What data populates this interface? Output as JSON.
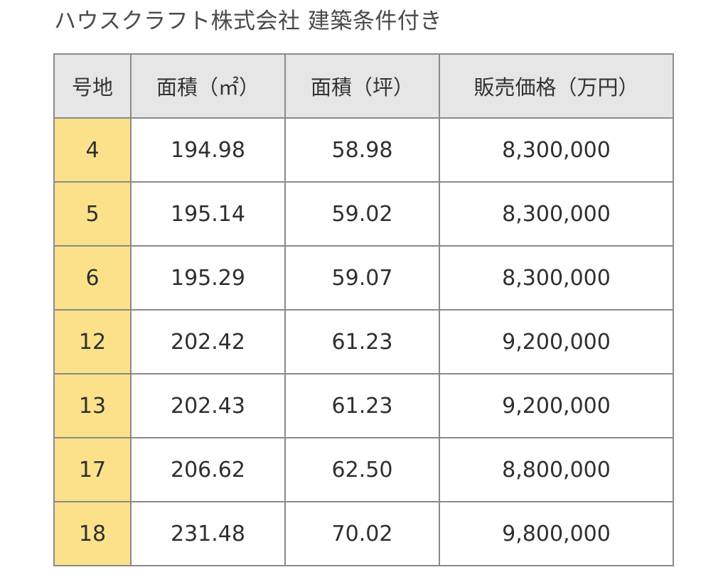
{
  "title": "ハウスクラフト株式会社 建築条件付き",
  "colors": {
    "header_bg": "#e6e6e6",
    "lot_bg": "#fbe28a",
    "border": "#8a8a8a",
    "text": "#2f2f2f"
  },
  "table": {
    "headers": [
      "号地",
      "面積（㎡）",
      "面積（坪）",
      "販売価格（万円）"
    ],
    "rows": [
      [
        "4",
        "194.98",
        "58.98",
        "8,300,000"
      ],
      [
        "5",
        "195.14",
        "59.02",
        "8,300,000"
      ],
      [
        "6",
        "195.29",
        "59.07",
        "8,300,000"
      ],
      [
        "12",
        "202.42",
        "61.23",
        "9,200,000"
      ],
      [
        "13",
        "202.43",
        "61.23",
        "9,200,000"
      ],
      [
        "17",
        "206.62",
        "62.50",
        "8,800,000"
      ],
      [
        "18",
        "231.48",
        "70.02",
        "9,800,000"
      ]
    ]
  }
}
